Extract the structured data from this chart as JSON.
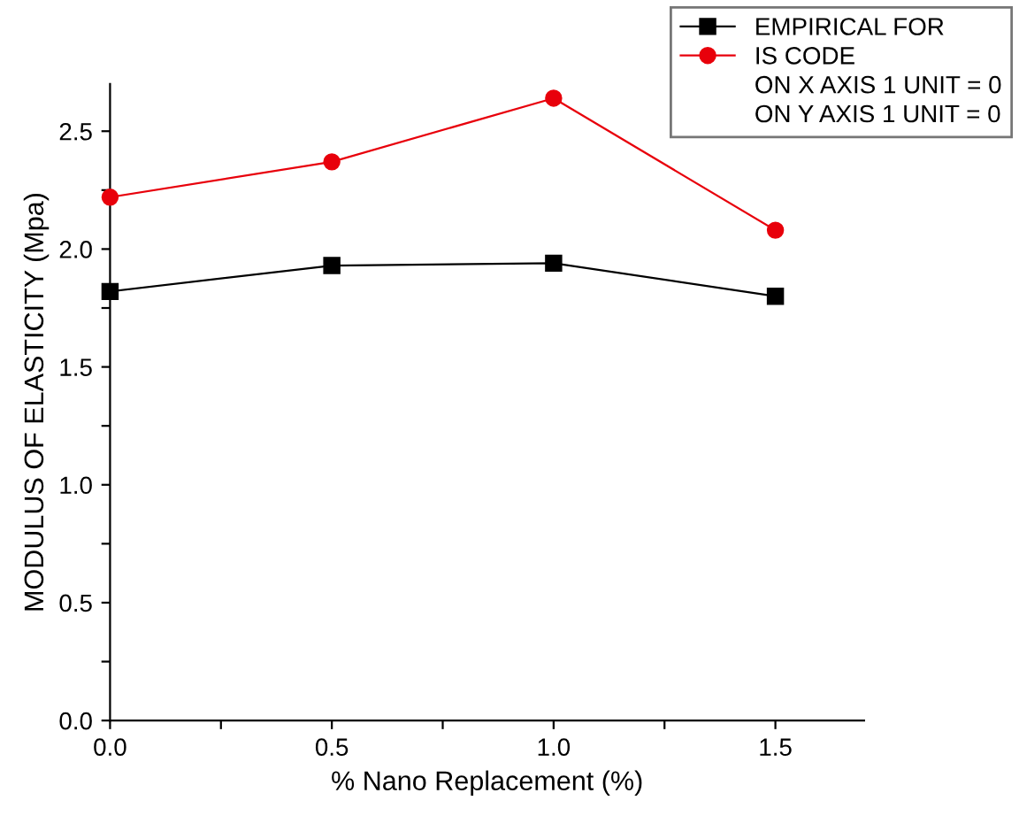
{
  "chart_data": {
    "type": "line",
    "xlabel": "% Nano Replacement (%)",
    "ylabel": "MODULUS OF ELASTICITY (Mpa)",
    "x": [
      0,
      0.5,
      1.0,
      1.5
    ],
    "series": [
      {
        "name": "EMPIRICAL FOR",
        "color": "#000000",
        "marker": "square",
        "values": [
          1.82,
          1.93,
          1.94,
          1.8
        ]
      },
      {
        "name": "IS CODE",
        "color": "#e8000b",
        "marker": "circle",
        "values": [
          2.22,
          2.37,
          2.64,
          2.08
        ]
      }
    ],
    "annotations": [
      "ON X AXIS 1 UNIT = 0",
      "ON Y AXIS 1 UNIT = 0"
    ],
    "xlim": [
      0,
      1.7
    ],
    "ylim": [
      0,
      2.7
    ],
    "xticks": [
      {
        "value": 0,
        "label": "0.0"
      },
      {
        "value": 0.25,
        "label": null
      },
      {
        "value": 0.5,
        "label": "0.5"
      },
      {
        "value": 0.75,
        "label": null
      },
      {
        "value": 1.0,
        "label": "1.0"
      },
      {
        "value": 1.25,
        "label": null
      },
      {
        "value": 1.5,
        "label": "1.5"
      }
    ],
    "yticks": [
      {
        "value": 0,
        "label": "0.0"
      },
      {
        "value": 0.25,
        "label": null
      },
      {
        "value": 0.5,
        "label": "0.5"
      },
      {
        "value": 0.75,
        "label": null
      },
      {
        "value": 1.0,
        "label": "1.0"
      },
      {
        "value": 1.25,
        "label": null
      },
      {
        "value": 1.5,
        "label": "1.5"
      },
      {
        "value": 1.75,
        "label": null
      },
      {
        "value": 2.0,
        "label": "2.0"
      },
      {
        "value": 2.25,
        "label": null
      },
      {
        "value": 2.5,
        "label": "2.5"
      }
    ],
    "grid": false,
    "legend": "top right",
    "line_style": "solid"
  }
}
